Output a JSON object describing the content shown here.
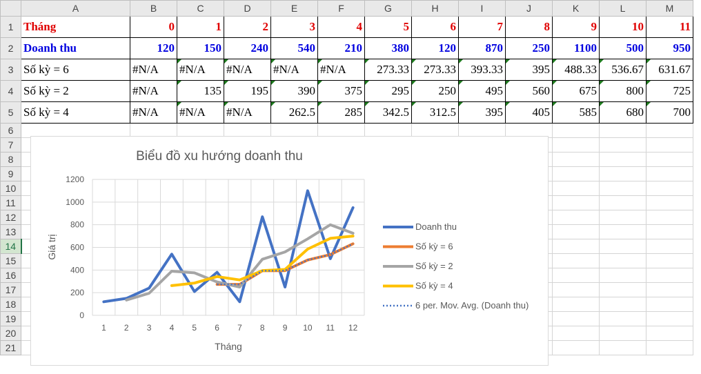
{
  "columns": [
    "A",
    "B",
    "C",
    "D",
    "E",
    "F",
    "G",
    "H",
    "I",
    "J",
    "K",
    "L",
    "M"
  ],
  "row_numbers": [
    "1",
    "2",
    "3",
    "4",
    "5",
    "6",
    "7",
    "8",
    "9",
    "10",
    "11",
    "12",
    "13",
    "14",
    "15",
    "16",
    "17",
    "18",
    "19",
    "20",
    "21"
  ],
  "table": {
    "row1": {
      "label": "Tháng",
      "values": [
        "0",
        "1",
        "2",
        "3",
        "4",
        "5",
        "6",
        "7",
        "8",
        "9",
        "10",
        "11"
      ]
    },
    "row2": {
      "label": "Doanh thu",
      "values": [
        "120",
        "150",
        "240",
        "540",
        "210",
        "380",
        "120",
        "870",
        "250",
        "1100",
        "500",
        "950"
      ]
    },
    "row3": {
      "label": "Số kỳ = 6",
      "values": [
        "#N/A",
        "#N/A",
        "#N/A",
        "#N/A",
        "#N/A",
        "273.33",
        "273.33",
        "393.33",
        "395",
        "488.33",
        "536.67",
        "631.67"
      ]
    },
    "row4": {
      "label": "Số kỳ = 2",
      "values": [
        "#N/A",
        "135",
        "195",
        "390",
        "375",
        "295",
        "250",
        "495",
        "560",
        "675",
        "800",
        "725"
      ]
    },
    "row5": {
      "label": "Số kỳ = 4",
      "values": [
        "#N/A",
        "#N/A",
        "#N/A",
        "262.5",
        "285",
        "342.5",
        "312.5",
        "395",
        "405",
        "585",
        "680",
        "700"
      ]
    }
  },
  "colors": {
    "red": "#e00000",
    "blue": "#0000e0",
    "sel_green": "#217346"
  },
  "chart_data": {
    "type": "line",
    "title": "Biểu đồ xu hướng doanh thu",
    "xlabel": "Tháng",
    "ylabel": "Giá trị",
    "categories": [
      "1",
      "2",
      "3",
      "4",
      "5",
      "6",
      "7",
      "8",
      "9",
      "10",
      "11",
      "12"
    ],
    "ylim": [
      0,
      1200
    ],
    "yticks": [
      "0",
      "200",
      "400",
      "600",
      "800",
      "1000",
      "1200"
    ],
    "grid": true,
    "legend_position": "right",
    "series": [
      {
        "name": "Doanh thu",
        "color": "#4472c4",
        "style": "solid",
        "values": [
          120,
          150,
          240,
          540,
          210,
          380,
          120,
          870,
          250,
          1100,
          500,
          950
        ]
      },
      {
        "name": "Số kỳ = 6",
        "color": "#ed7d31",
        "style": "solid",
        "values": [
          null,
          null,
          null,
          null,
          null,
          273.33,
          273.33,
          393.33,
          395,
          488.33,
          536.67,
          631.67
        ]
      },
      {
        "name": "Số kỳ = 2",
        "color": "#a5a5a5",
        "style": "solid",
        "values": [
          null,
          135,
          195,
          390,
          375,
          295,
          250,
          495,
          560,
          675,
          800,
          725
        ]
      },
      {
        "name": "Số kỳ = 4",
        "color": "#ffc000",
        "style": "solid",
        "values": [
          null,
          null,
          null,
          262.5,
          285,
          342.5,
          312.5,
          395,
          405,
          585,
          680,
          700
        ]
      },
      {
        "name": "6 per. Mov. Avg. (Doanh thu)",
        "color": "#4472c4",
        "style": "dotted",
        "values": [
          null,
          null,
          null,
          null,
          null,
          273.33,
          273.33,
          393.33,
          395,
          488.33,
          536.67,
          631.67
        ]
      }
    ]
  }
}
